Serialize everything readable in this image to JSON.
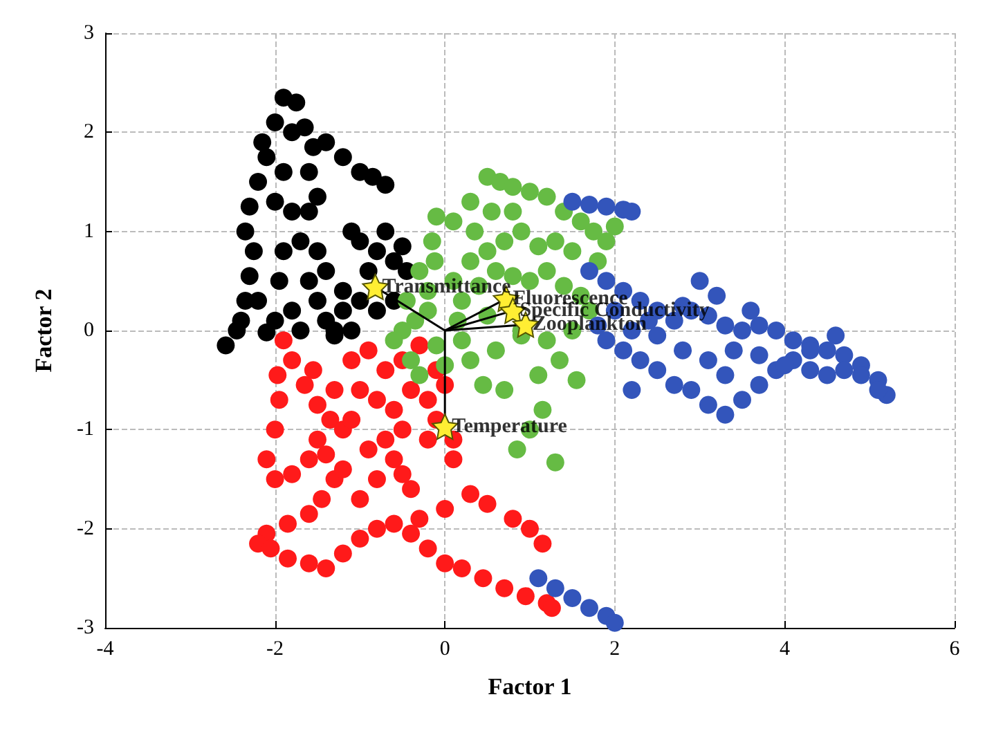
{
  "chart_data": {
    "type": "scatter",
    "xlabel": "Factor 1",
    "ylabel": "Factor 2",
    "xlim": [
      -4,
      6
    ],
    "ylim": [
      -3,
      3
    ],
    "xticks": [
      -4,
      -2,
      0,
      2,
      4,
      6
    ],
    "yticks": [
      -3,
      -2,
      -1,
      0,
      1,
      2,
      3
    ],
    "grid": true,
    "marker": "circle",
    "series": [
      {
        "color": "#000000",
        "x": [
          -2.58,
          -2.45,
          -2.35,
          -2.3,
          -2.25,
          -2.35,
          -2.3,
          -2.2,
          -2.1,
          -2.0,
          -1.9,
          -1.75,
          -1.65,
          -1.55,
          -1.4,
          -1.2,
          -1.0,
          -0.85,
          -0.7,
          -1.8,
          -1.9,
          -1.8,
          -1.9,
          -1.95,
          -2.0,
          -2.1,
          -1.8,
          -1.6,
          -1.5,
          -1.4,
          -1.3,
          -1.5,
          -1.6,
          -1.5,
          -1.4,
          -1.2,
          -1.0,
          -0.9,
          -0.8,
          -0.6,
          -0.45,
          -0.6,
          -0.8,
          -1.1,
          -1.0,
          -1.2,
          -2.4,
          -2.15,
          -1.7,
          -1.7,
          -1.1,
          -1.3,
          -0.5,
          -0.7,
          -1.6,
          -2.0,
          -2.2
        ],
        "values": [
          -0.15,
          0.0,
          0.3,
          0.55,
          0.8,
          1.0,
          1.25,
          1.5,
          1.75,
          2.1,
          2.35,
          2.3,
          2.05,
          1.85,
          1.9,
          1.75,
          1.6,
          1.55,
          1.47,
          2.0,
          1.6,
          1.2,
          0.8,
          0.5,
          0.1,
          -0.02,
          0.2,
          0.5,
          0.3,
          0.1,
          0.0,
          0.8,
          1.2,
          1.35,
          0.6,
          0.4,
          0.3,
          0.6,
          0.8,
          0.7,
          0.6,
          0.3,
          0.2,
          1.0,
          0.9,
          0.2,
          0.1,
          1.9,
          0.9,
          0.0,
          0.0,
          -0.05,
          0.85,
          1.0,
          1.6,
          1.3,
          0.3
        ]
      },
      {
        "color": "#ff1a1a",
        "x": [
          -1.9,
          -1.8,
          -1.65,
          -1.5,
          -1.35,
          -1.2,
          -1.55,
          -1.3,
          -1.1,
          -0.9,
          -0.7,
          -0.5,
          -0.3,
          -0.1,
          0.0,
          -0.2,
          -0.4,
          -0.6,
          -0.8,
          -1.0,
          -1.97,
          -1.95,
          -2.0,
          -2.1,
          -2.0,
          -1.8,
          -1.6,
          -1.5,
          -1.4,
          -1.3,
          -1.45,
          -1.6,
          -1.85,
          -2.1,
          -2.2,
          -2.05,
          -1.85,
          -1.6,
          -1.4,
          -1.2,
          -1.0,
          -0.8,
          -0.6,
          -0.4,
          -0.2,
          0.0,
          0.2,
          0.45,
          0.7,
          0.95,
          1.2,
          1.26,
          0.3,
          0.5,
          0.8,
          1.0,
          1.15,
          0.1,
          -0.2,
          -0.5,
          -0.9,
          -1.2,
          -0.8,
          -0.4,
          0.0,
          -0.6,
          -1.0,
          -0.3,
          -0.7,
          -1.1,
          0.1,
          -0.1,
          -0.5
        ],
        "values": [
          -0.1,
          -0.3,
          -0.55,
          -0.75,
          -0.9,
          -1.0,
          -0.4,
          -0.6,
          -0.3,
          -0.2,
          -0.4,
          -0.3,
          -0.15,
          -0.4,
          -0.55,
          -0.7,
          -0.6,
          -0.8,
          -0.7,
          -0.6,
          -0.45,
          -0.7,
          -1.0,
          -1.3,
          -1.5,
          -1.45,
          -1.3,
          -1.1,
          -1.25,
          -1.5,
          -1.7,
          -1.85,
          -1.95,
          -2.05,
          -2.15,
          -2.2,
          -2.3,
          -2.35,
          -2.4,
          -2.25,
          -2.1,
          -2.0,
          -1.95,
          -2.05,
          -2.2,
          -2.35,
          -2.4,
          -2.5,
          -2.6,
          -2.68,
          -2.75,
          -2.8,
          -1.65,
          -1.75,
          -1.9,
          -2.0,
          -2.15,
          -1.3,
          -1.1,
          -1.0,
          -1.2,
          -1.4,
          -1.5,
          -1.6,
          -1.8,
          -1.3,
          -1.7,
          -1.9,
          -1.1,
          -0.9,
          -1.1,
          -0.9,
          -1.45
        ]
      },
      {
        "color": "#66bb44",
        "x": [
          -0.45,
          -0.3,
          -0.15,
          -0.1,
          -0.12,
          -0.2,
          -0.35,
          -0.5,
          -0.6,
          -0.4,
          0.1,
          0.3,
          0.5,
          0.55,
          0.65,
          0.8,
          1.0,
          1.2,
          1.4,
          1.6,
          1.75,
          1.9,
          2.0,
          1.8,
          1.5,
          1.3,
          1.1,
          0.9,
          0.7,
          0.5,
          0.3,
          0.1,
          0.2,
          0.4,
          0.6,
          0.8,
          1.0,
          1.2,
          1.4,
          1.6,
          1.7,
          1.5,
          1.2,
          0.9,
          0.6,
          0.3,
          0.0,
          -0.3,
          -0.1,
          0.2,
          0.5,
          0.9,
          1.15,
          1.0,
          0.85,
          1.3,
          0.45,
          0.7,
          1.1,
          1.35,
          1.55,
          0.15,
          -0.2,
          0.35,
          0.8
        ],
        "values": [
          0.3,
          0.6,
          0.9,
          1.15,
          0.7,
          0.4,
          0.1,
          0.0,
          -0.1,
          -0.3,
          1.1,
          1.3,
          1.55,
          1.2,
          1.5,
          1.45,
          1.4,
          1.35,
          1.2,
          1.1,
          1.0,
          0.9,
          1.05,
          0.7,
          0.8,
          0.9,
          0.85,
          1.0,
          0.9,
          0.8,
          0.7,
          0.5,
          0.3,
          0.45,
          0.6,
          0.55,
          0.5,
          0.6,
          0.45,
          0.35,
          0.2,
          0.0,
          -0.1,
          -0.05,
          -0.2,
          -0.3,
          -0.35,
          -0.45,
          -0.15,
          -0.1,
          0.15,
          0.0,
          -0.8,
          -1.0,
          -1.2,
          -1.33,
          -0.55,
          -0.6,
          -0.45,
          -0.3,
          -0.5,
          0.1,
          0.2,
          1.0,
          1.2
        ]
      },
      {
        "color": "#3355bb",
        "x": [
          1.5,
          1.7,
          1.9,
          2.1,
          2.2,
          1.7,
          1.9,
          2.1,
          2.3,
          2.5,
          2.7,
          2.9,
          3.1,
          3.3,
          3.5,
          3.7,
          3.9,
          4.1,
          4.3,
          4.5,
          4.7,
          4.9,
          5.1,
          5.2,
          5.1,
          4.9,
          4.7,
          4.5,
          4.3,
          4.1,
          3.9,
          3.7,
          3.5,
          3.3,
          3.1,
          2.9,
          2.7,
          2.5,
          2.3,
          2.1,
          1.9,
          2.2,
          2.5,
          2.8,
          3.1,
          3.4,
          3.7,
          4.0,
          4.3,
          4.6,
          3.6,
          3.2,
          2.8,
          2.4,
          2.0,
          1.8,
          1.1,
          1.3,
          1.5,
          1.7,
          1.9,
          2.0,
          2.2,
          3.0,
          3.3
        ],
        "values": [
          1.3,
          1.27,
          1.25,
          1.22,
          1.2,
          0.6,
          0.5,
          0.4,
          0.3,
          0.2,
          0.1,
          0.2,
          0.15,
          0.05,
          0.0,
          0.05,
          0.0,
          -0.1,
          -0.15,
          -0.2,
          -0.25,
          -0.35,
          -0.5,
          -0.65,
          -0.6,
          -0.45,
          -0.4,
          -0.45,
          -0.4,
          -0.3,
          -0.4,
          -0.55,
          -0.7,
          -0.85,
          -0.75,
          -0.6,
          -0.55,
          -0.4,
          -0.3,
          -0.2,
          -0.1,
          0.0,
          -0.05,
          -0.2,
          -0.3,
          -0.2,
          -0.25,
          -0.35,
          -0.2,
          -0.05,
          0.2,
          0.35,
          0.25,
          0.1,
          0.2,
          0.05,
          -2.5,
          -2.6,
          -2.7,
          -2.8,
          -2.88,
          -2.95,
          -0.6,
          0.5,
          -0.45
        ]
      },
      {
        "type": "line",
        "color": "#000000",
        "marker": "none",
        "line_style": "solid",
        "x": [
          0,
          -0.82
        ],
        "values": [
          0,
          0.44
        ]
      },
      {
        "type": "line",
        "color": "#000000",
        "marker": "none",
        "line_style": "solid",
        "x": [
          0,
          0.72
        ],
        "values": [
          0,
          0.32
        ]
      },
      {
        "type": "line",
        "color": "#000000",
        "marker": "none",
        "line_style": "solid",
        "x": [
          0,
          0.8
        ],
        "values": [
          0,
          0.2
        ]
      },
      {
        "type": "line",
        "color": "#000000",
        "marker": "none",
        "line_style": "solid",
        "x": [
          0,
          0.95
        ],
        "values": [
          0,
          0.06
        ]
      },
      {
        "type": "line",
        "color": "#000000",
        "marker": "none",
        "line_style": "solid",
        "x": [
          0,
          0
        ],
        "values": [
          0,
          -0.97
        ]
      },
      {
        "color": "#ffee33",
        "marker": "star",
        "x": [
          -0.82,
          0.72,
          0.8,
          0.95,
          0
        ],
        "values": [
          0.44,
          0.32,
          0.2,
          0.06,
          -0.97
        ]
      }
    ],
    "annotations": [
      {
        "text": "Transmittance",
        "x": -0.82,
        "y": 0.44
      },
      {
        "text": "Fluorescence",
        "x": 0.72,
        "y": 0.32
      },
      {
        "text": "Specific Conductivity",
        "x": 0.8,
        "y": 0.2
      },
      {
        "text": "Zooplankton",
        "x": 0.95,
        "y": 0.06
      },
      {
        "text": "Temperature",
        "x": 0,
        "y": -0.97
      }
    ]
  }
}
